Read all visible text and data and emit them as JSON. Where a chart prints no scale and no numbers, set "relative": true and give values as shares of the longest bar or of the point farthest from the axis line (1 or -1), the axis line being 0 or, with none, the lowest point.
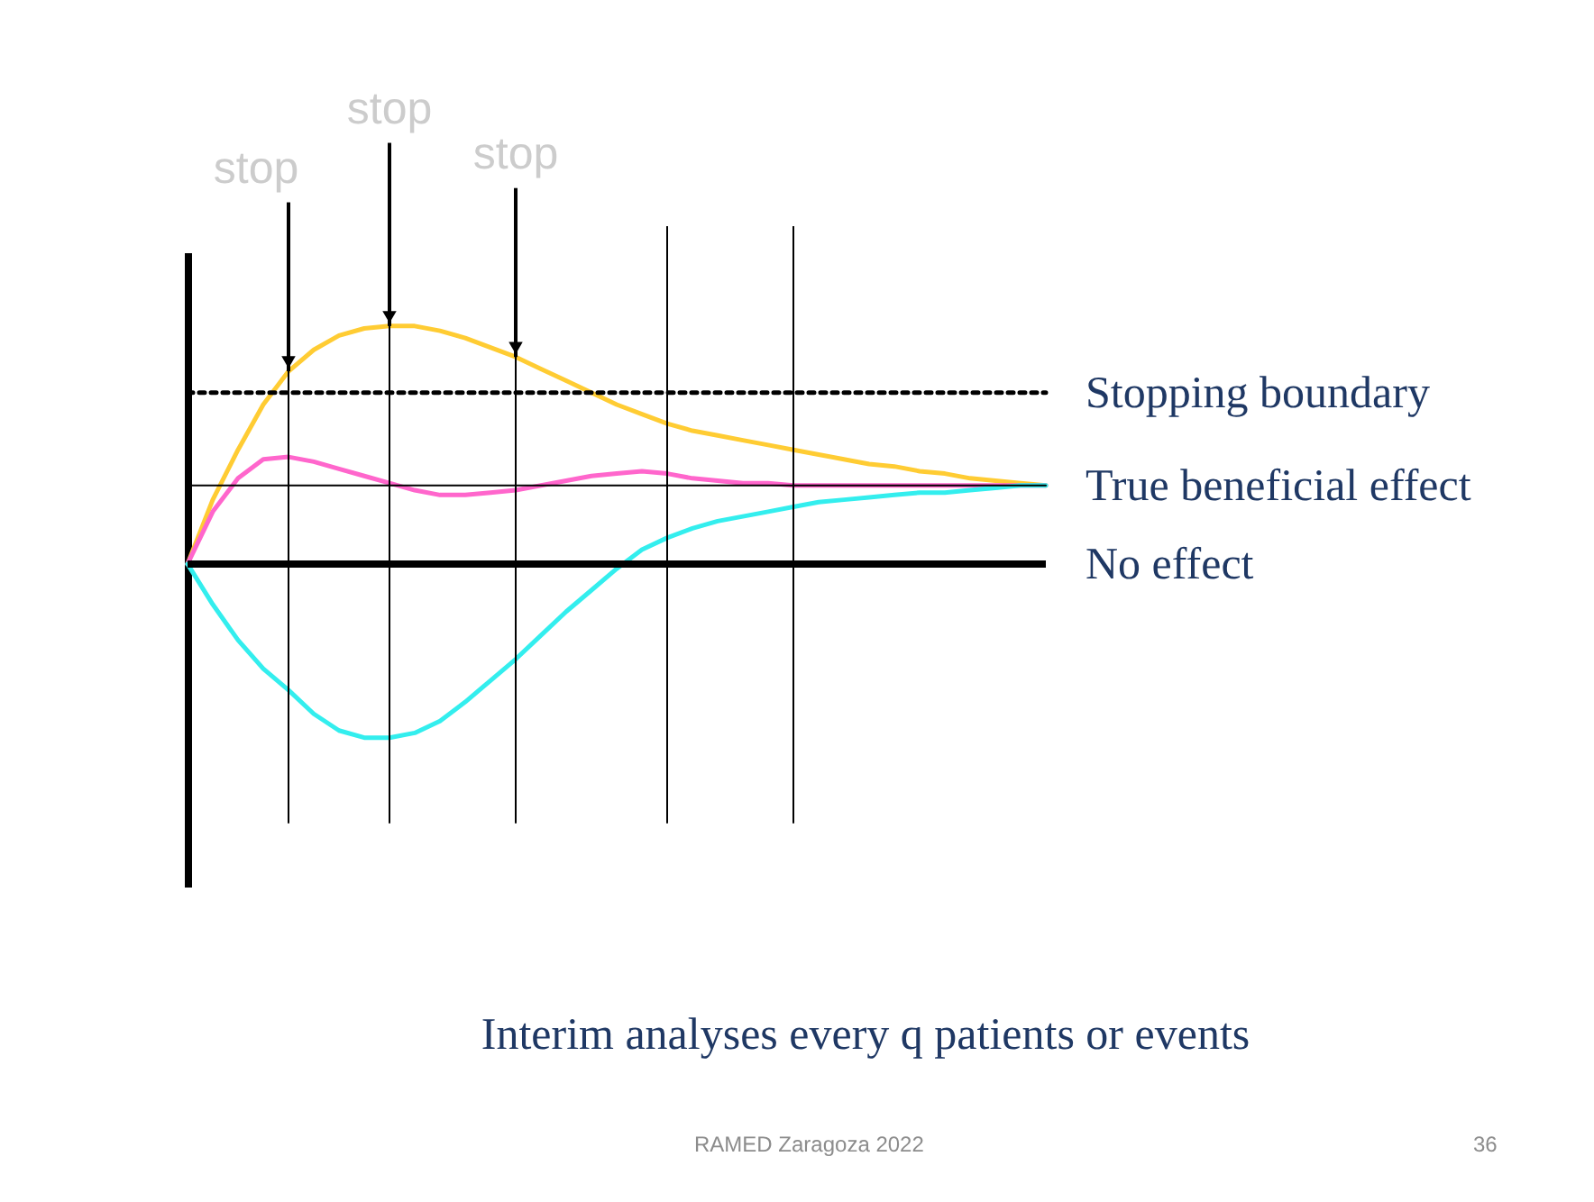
{
  "chart_data": {
    "type": "line",
    "relative": true,
    "title": "Interim analyses every q patients or events",
    "categories": [
      null,
      null,
      null,
      null,
      null,
      null,
      null,
      null,
      null,
      null,
      null,
      null,
      null,
      null,
      null,
      null,
      null,
      null,
      null,
      null,
      null,
      null,
      null,
      null,
      null,
      null,
      null,
      null,
      null,
      null,
      null,
      null,
      null,
      null,
      null
    ],
    "legend": false,
    "marker": "none",
    "line_style": "solid",
    "series": [
      {
        "color": "#ffcc33",
        "values": [
          0,
          0.27,
          0.48,
          0.67,
          0.81,
          0.9,
          0.96,
          0.99,
          1,
          1,
          0.98,
          0.95,
          0.91,
          0.87,
          0.82,
          0.77,
          0.72,
          0.67,
          0.63,
          0.59,
          0.56,
          0.54,
          0.52,
          0.5,
          0.48,
          0.46,
          0.44,
          0.42,
          0.41,
          0.39,
          0.38,
          0.36,
          0.35,
          0.34,
          0.33
        ]
      },
      {
        "color": "#ff66cc",
        "values": [
          0,
          0.22,
          0.36,
          0.44,
          0.45,
          0.43,
          0.4,
          0.37,
          0.34,
          0.31,
          0.29,
          0.29,
          0.3,
          0.31,
          0.33,
          0.35,
          0.37,
          0.38,
          0.39,
          0.38,
          0.36,
          0.35,
          0.34,
          0.34,
          0.33,
          0.33,
          0.33,
          0.33,
          0.33,
          0.33,
          0.33,
          0.33,
          0.33,
          0.33,
          0.33
        ]
      },
      {
        "color": "#33eeee",
        "values": [
          0,
          -0.17,
          -0.32,
          -0.44,
          -0.53,
          -0.63,
          -0.7,
          -0.73,
          -0.73,
          -0.71,
          -0.66,
          -0.58,
          -0.49,
          -0.4,
          -0.3,
          -0.2,
          -0.11,
          -0.02,
          0.06,
          0.11,
          0.15,
          0.18,
          0.2,
          0.22,
          0.24,
          0.26,
          0.27,
          0.28,
          0.29,
          0.3,
          0.3,
          0.31,
          0.32,
          0.33,
          0.33
        ]
      },
      {
        "name": "Stopping boundary",
        "color": "#000000",
        "line_style": "dotted",
        "values": [
          0.72,
          0.72,
          0.72,
          0.72,
          0.72,
          0.72,
          0.72,
          0.72,
          0.72,
          0.72,
          0.72,
          0.72,
          0.72,
          0.72,
          0.72,
          0.72,
          0.72,
          0.72,
          0.72,
          0.72,
          0.72,
          0.72,
          0.72,
          0.72,
          0.72,
          0.72,
          0.72,
          0.72,
          0.72,
          0.72,
          0.72,
          0.72,
          0.72,
          0.72,
          0.72
        ]
      },
      {
        "name": "True beneficial effect",
        "color": "#000000",
        "values": [
          0.33,
          0.33,
          0.33,
          0.33,
          0.33,
          0.33,
          0.33,
          0.33,
          0.33,
          0.33,
          0.33,
          0.33,
          0.33,
          0.33,
          0.33,
          0.33,
          0.33,
          0.33,
          0.33,
          0.33,
          0.33,
          0.33,
          0.33,
          0.33,
          0.33,
          0.33,
          0.33,
          0.33,
          0.33,
          0.33,
          0.33,
          0.33,
          0.33,
          0.33,
          0.33
        ]
      }
    ],
    "ref_lines": [
      {
        "axis": "y",
        "value": 0,
        "label": "No effect",
        "color": "#000000"
      }
    ],
    "annotations": [
      "stop",
      "stop",
      "stop",
      "RAMED Zaragoza 2022",
      "36"
    ]
  }
}
